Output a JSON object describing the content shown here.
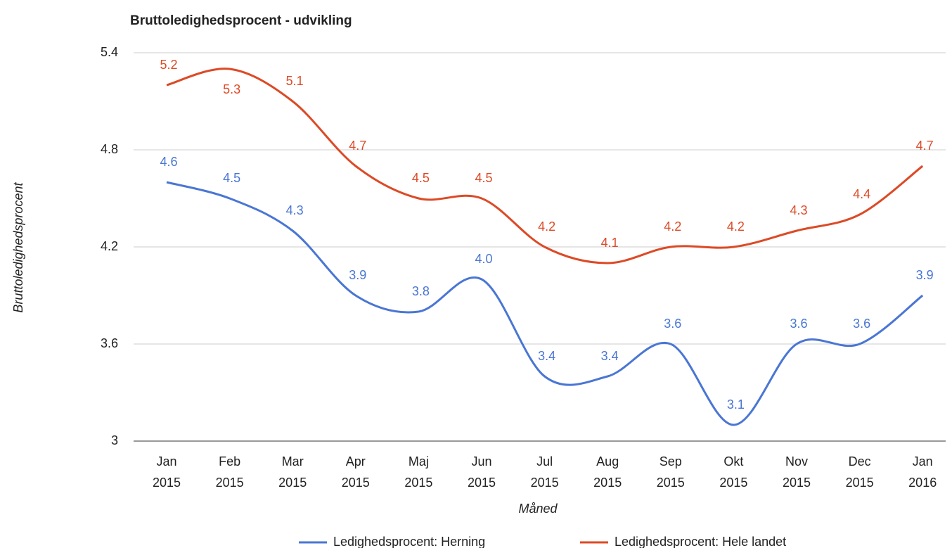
{
  "chart_data": {
    "type": "line",
    "title": "Bruttoledighedsprocent - udvikling",
    "x_label": "Måned",
    "y_label": "Bruttoledighedsprocent",
    "categories": [
      "Jan 2015",
      "Feb 2015",
      "Mar 2015",
      "Apr 2015",
      "Maj 2015",
      "Jun 2015",
      "Jul 2015",
      "Aug 2015",
      "Sep 2015",
      "Okt 2015",
      "Nov 2015",
      "Dec 2015",
      "Jan 2016"
    ],
    "series": [
      {
        "name": "Ledighedsprocent: Herning",
        "color": "#4a76d4",
        "values": [
          4.6,
          4.5,
          4.3,
          3.9,
          3.8,
          4.0,
          3.4,
          3.4,
          3.6,
          3.1,
          3.6,
          3.6,
          3.9
        ],
        "value_labels": [
          "4.6",
          "4.5",
          "4.3",
          "3.9",
          "3.8",
          "4.0",
          "3.4",
          "3.4",
          "3.6",
          "3.1",
          "3.6",
          "3.6",
          "3.9"
        ]
      },
      {
        "name": "Ledighedsprocent: Hele landet",
        "color": "#dc4a26",
        "values": [
          5.2,
          5.3,
          5.1,
          4.7,
          4.5,
          4.5,
          4.2,
          4.1,
          4.2,
          4.2,
          4.3,
          4.4,
          4.7
        ],
        "value_labels": [
          "5.2",
          "5.3",
          "5.1",
          "4.7",
          "4.5",
          "4.5",
          "4.2",
          "4.1",
          "4.2",
          "4.2",
          "4.3",
          "4.4",
          "4.7"
        ]
      }
    ],
    "ylim": [
      3,
      5.4
    ],
    "yticks": [
      3,
      3.6,
      4.2,
      4.8,
      5.4
    ],
    "grid": true,
    "legend": "bottom"
  }
}
